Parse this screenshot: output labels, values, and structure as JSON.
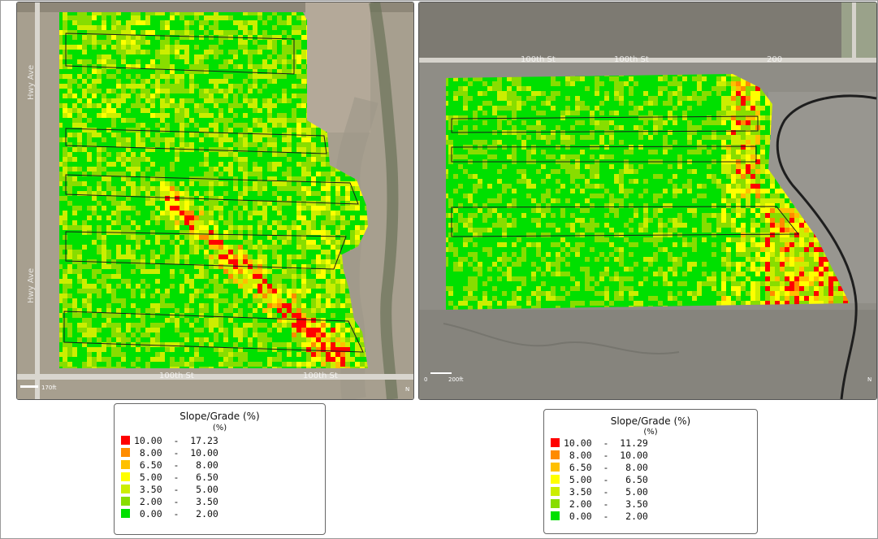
{
  "legend_classes": [
    {
      "range": "10.00 - 17.23",
      "color": "#ff0000"
    },
    {
      "range": "8.00 - 10.00",
      "color": "#ff8c00"
    },
    {
      "range": "6.50 - 8.00",
      "color": "#ffc000"
    },
    {
      "range": "5.00 - 6.50",
      "color": "#ffff00"
    },
    {
      "range": "3.50 - 5.00",
      "color": "#ccee00"
    },
    {
      "range": "2.00 - 3.50",
      "color": "#88dd00"
    },
    {
      "range": "0.00 - 2.00",
      "color": "#00e000"
    }
  ],
  "maps": [
    {
      "id": "left",
      "scale_label": "170ft",
      "road_labels": [
        "100th St",
        "100th St",
        "Hwy Ave",
        "Hwy Ave"
      ],
      "north_label": "N",
      "legend": {
        "title": "Slope/Grade (%)",
        "unit": "(%)",
        "rows": [
          {
            "range": "10.00  -  17.23",
            "color": "#ff0000"
          },
          {
            "range": " 8.00  -  10.00",
            "color": "#ff8c00"
          },
          {
            "range": " 6.50  -   8.00",
            "color": "#ffc000"
          },
          {
            "range": " 5.00  -   6.50",
            "color": "#ffff00"
          },
          {
            "range": " 3.50  -   5.00",
            "color": "#ccee00"
          },
          {
            "range": " 2.00  -   3.50",
            "color": "#88dd00"
          },
          {
            "range": " 0.00  -   2.00",
            "color": "#00e000"
          }
        ]
      }
    },
    {
      "id": "right",
      "scale_label": "200ft",
      "scale_zero": "0",
      "road_labels": [
        "100th St",
        "100th St",
        "200"
      ],
      "north_label": "N",
      "legend": {
        "title": "Slope/Grade (%)",
        "unit": "(%)",
        "rows": [
          {
            "range": "10.00  -  11.29",
            "color": "#ff0000"
          },
          {
            "range": " 8.00  -  10.00",
            "color": "#ff8c00"
          },
          {
            "range": " 6.50  -   8.00",
            "color": "#ffc000"
          },
          {
            "range": " 5.00  -   6.50",
            "color": "#ffff00"
          },
          {
            "range": " 3.50  -   5.00",
            "color": "#ccee00"
          },
          {
            "range": " 2.00  -   3.50",
            "color": "#88dd00"
          },
          {
            "range": " 0.00  -   2.00",
            "color": "#00e000"
          }
        ]
      }
    }
  ]
}
